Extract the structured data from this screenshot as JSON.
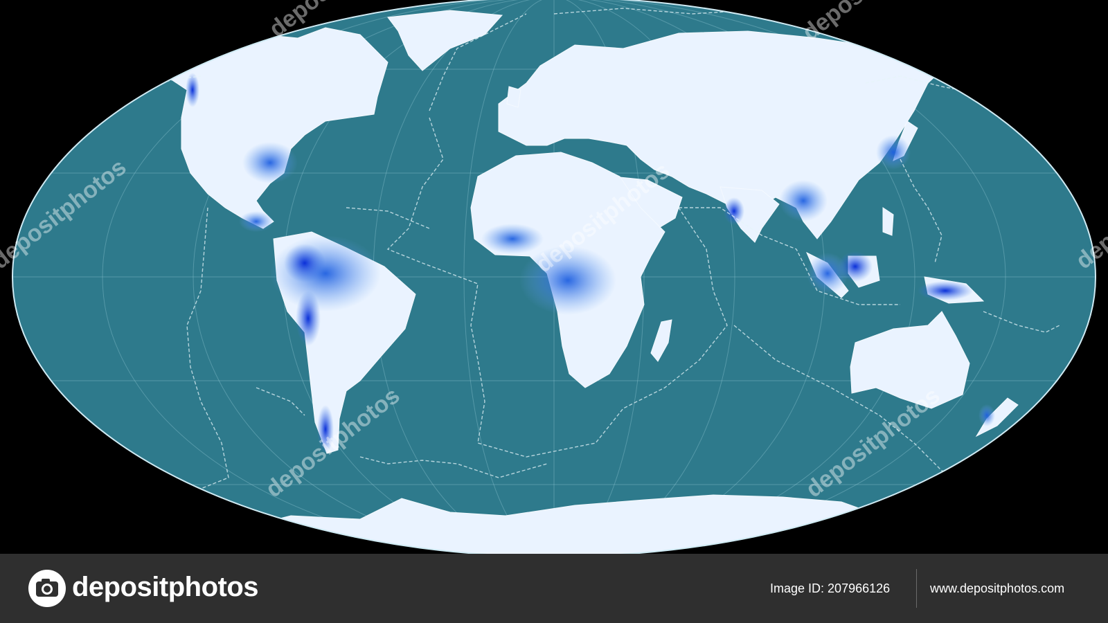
{
  "watermark": {
    "text": "depositphotos"
  },
  "footer": {
    "brand": "depositphotos",
    "image_id_label": "Image ID:",
    "image_id": "207966126",
    "site_url": "www.depositphotos.com"
  },
  "map": {
    "projection": "Robinson",
    "ocean_color": "#2e7a8c",
    "land_low_color": "#eaf3ff",
    "land_high_color": "#1e5fe0",
    "outline_color": "#cfeaf3",
    "plate_boundary_style": "dashed"
  }
}
